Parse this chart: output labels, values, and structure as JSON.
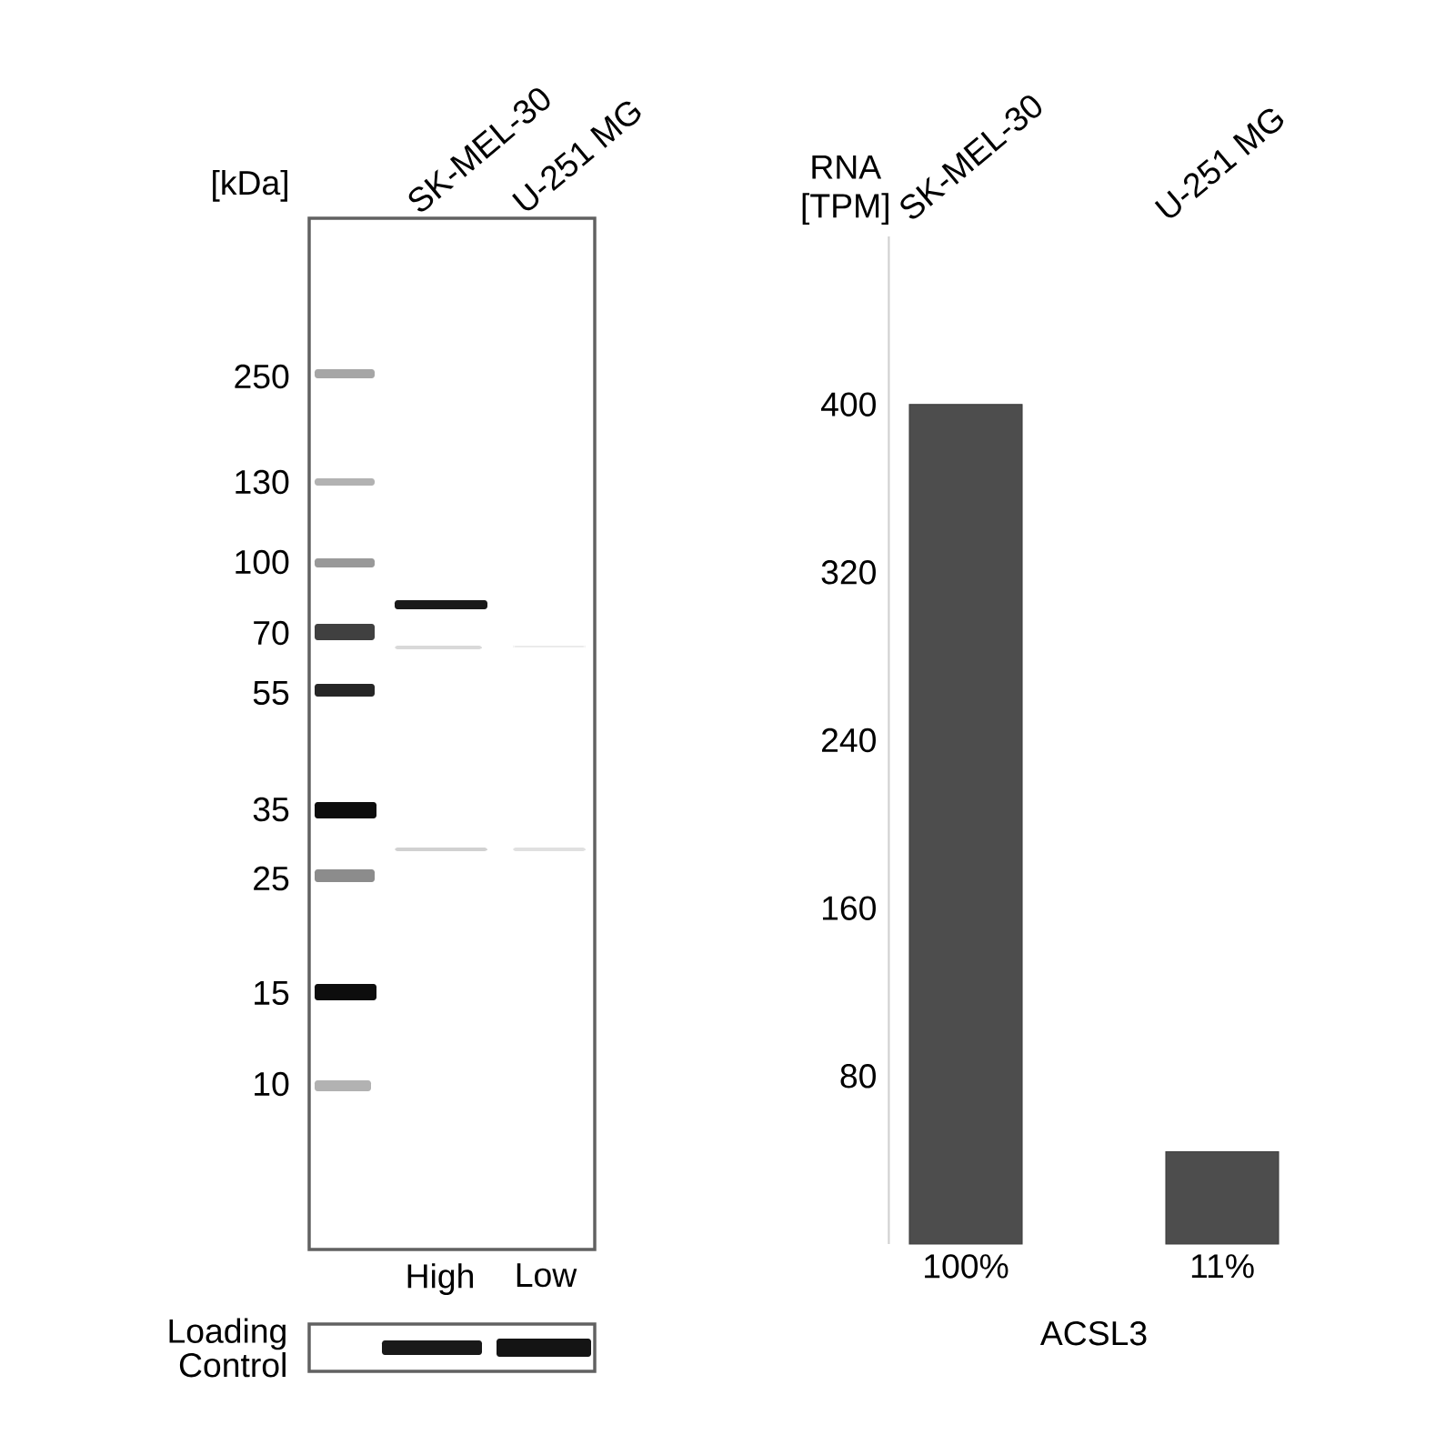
{
  "chart_data": [
    {
      "type": "other",
      "ylabel": "[kDa]",
      "categories": [
        "SK-MEL-30",
        "U-251 MG"
      ],
      "annotations": [
        "250",
        "130",
        "100",
        "70",
        "55",
        "35",
        "25",
        "15",
        "10",
        "High",
        "Low"
      ]
    },
    {
      "type": "other",
      "ylabel": "Loading Control"
    },
    {
      "type": "bar",
      "ylabel": "RNA [TPM]",
      "xlabel": "ACSL3",
      "categories": [
        "SK-MEL-30",
        "U-251 MG"
      ],
      "values": [
        400,
        44
      ],
      "color": "#4d4d4d",
      "ylim": [
        0,
        480
      ],
      "yticks": [
        80,
        160,
        240,
        320,
        400
      ],
      "annotations": [
        "100%",
        "11%"
      ]
    }
  ]
}
